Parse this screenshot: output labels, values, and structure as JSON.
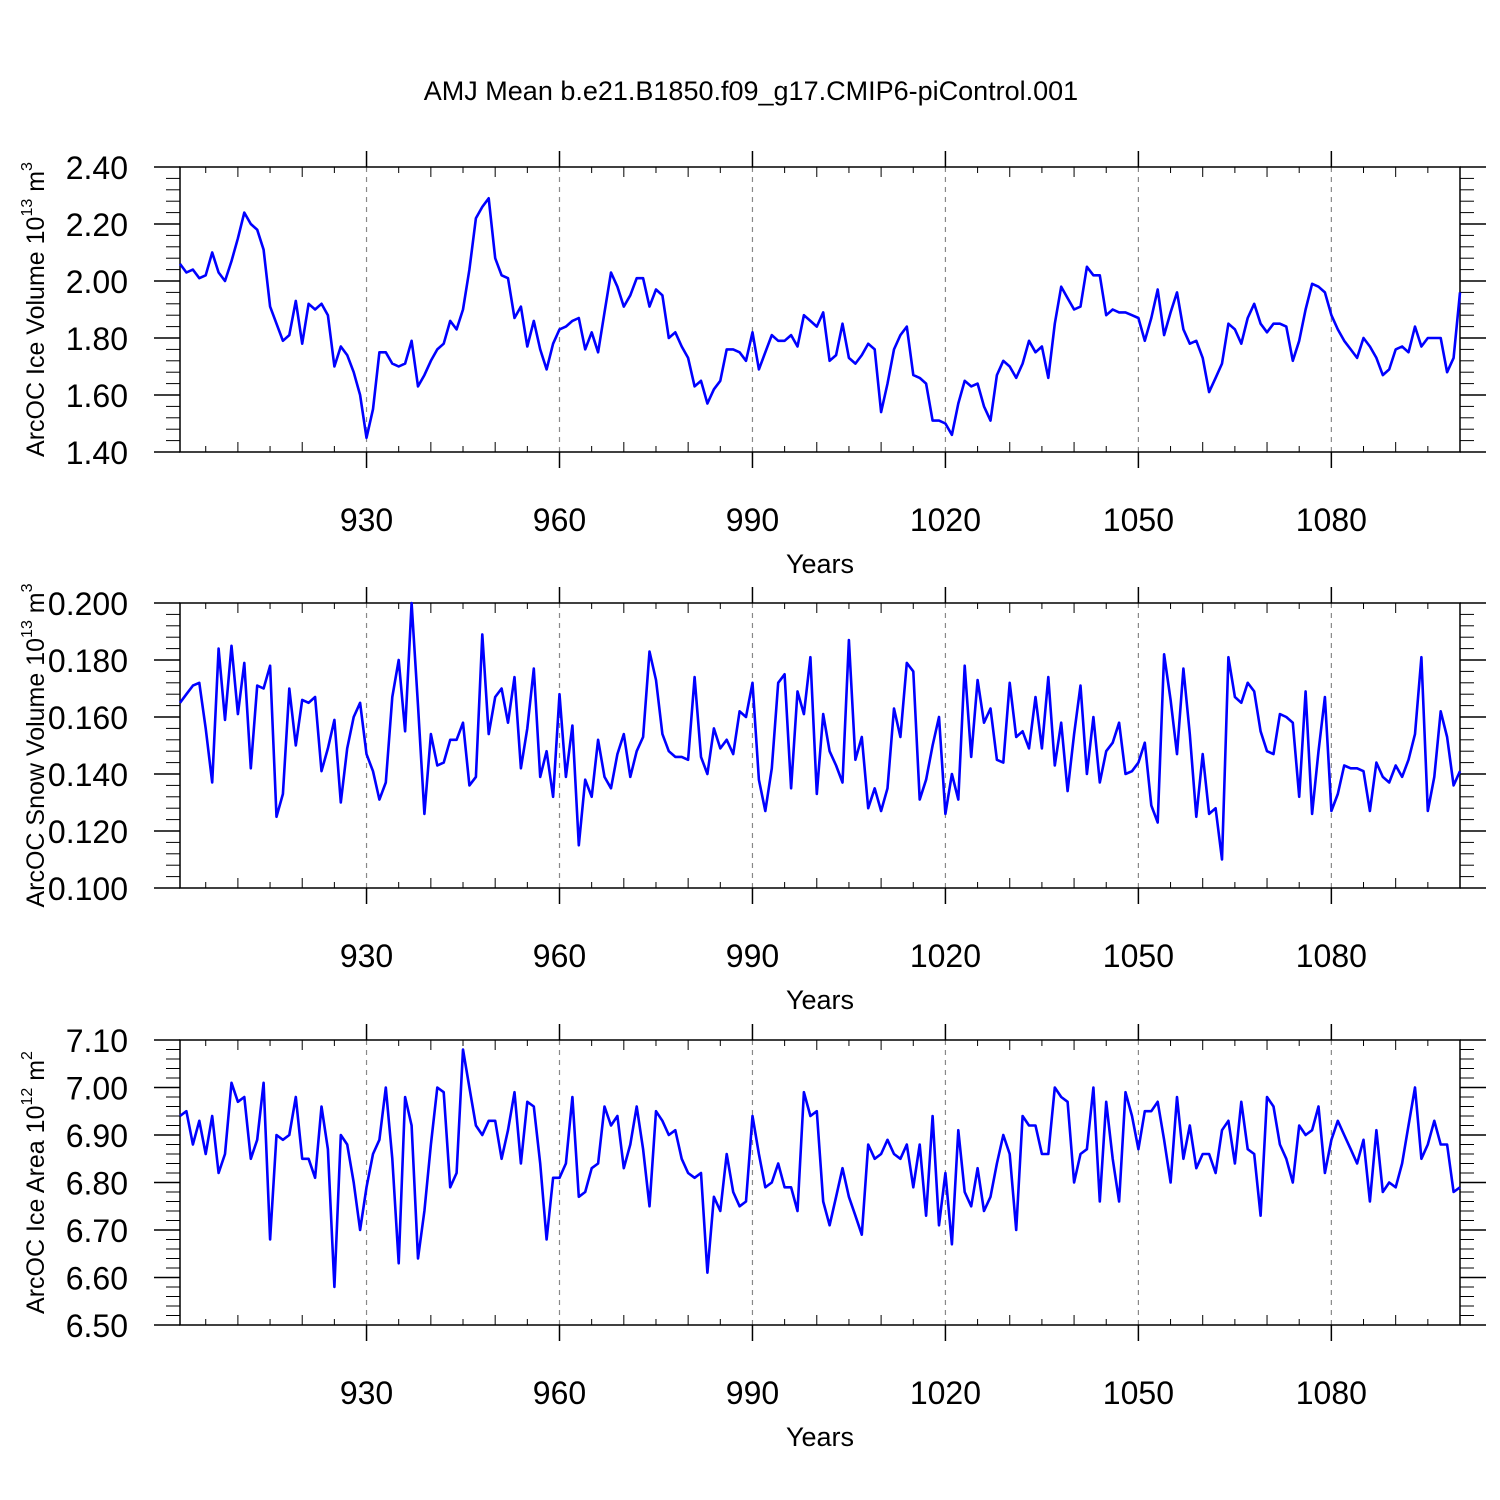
{
  "title": "AMJ Mean b.e21.B1850.f09_g17.CMIP6-piControl.001",
  "colors": {
    "line": "#0000ff",
    "axis": "#000000",
    "grid": "#888888",
    "background": "#ffffff"
  },
  "chart_data": [
    {
      "type": "line",
      "ylabel": {
        "text": "ArcOC Ice Volume 10",
        "exp": "13",
        "unit": "m",
        "unit_exp": "3"
      },
      "xlabel": "Years",
      "xlim": [
        901,
        1100
      ],
      "ylim": [
        1.4,
        2.4
      ],
      "xticks": [
        930,
        960,
        990,
        1020,
        1050,
        1080
      ],
      "xticklabels": [
        "930",
        "960",
        "990",
        "1020",
        "1050",
        "1080"
      ],
      "yticks": [
        1.4,
        1.6,
        1.8,
        2.0,
        2.2,
        2.4
      ],
      "yticklabels": [
        "1.40",
        "1.60",
        "1.80",
        "2.00",
        "2.20",
        "2.40"
      ],
      "grid": "vertical-dashed",
      "x_start": 901,
      "values": [
        2.06,
        2.03,
        2.04,
        2.01,
        2.02,
        2.1,
        2.03,
        2.0,
        2.07,
        2.15,
        2.24,
        2.2,
        2.18,
        2.11,
        1.91,
        1.85,
        1.79,
        1.81,
        1.93,
        1.78,
        1.92,
        1.9,
        1.92,
        1.88,
        1.7,
        1.77,
        1.74,
        1.68,
        1.6,
        1.45,
        1.55,
        1.75,
        1.75,
        1.71,
        1.7,
        1.71,
        1.79,
        1.63,
        1.67,
        1.72,
        1.76,
        1.78,
        1.86,
        1.83,
        1.9,
        2.04,
        2.22,
        2.26,
        2.29,
        2.08,
        2.02,
        2.01,
        1.87,
        1.91,
        1.77,
        1.86,
        1.76,
        1.69,
        1.78,
        1.83,
        1.84,
        1.86,
        1.87,
        1.76,
        1.82,
        1.75,
        1.89,
        2.03,
        1.98,
        1.91,
        1.95,
        2.01,
        2.01,
        1.91,
        1.97,
        1.95,
        1.8,
        1.82,
        1.77,
        1.73,
        1.63,
        1.65,
        1.57,
        1.62,
        1.65,
        1.76,
        1.76,
        1.75,
        1.72,
        1.82,
        1.69,
        1.75,
        1.81,
        1.79,
        1.79,
        1.81,
        1.77,
        1.88,
        1.86,
        1.84,
        1.89,
        1.72,
        1.74,
        1.85,
        1.73,
        1.71,
        1.74,
        1.78,
        1.76,
        1.54,
        1.64,
        1.76,
        1.81,
        1.84,
        1.67,
        1.66,
        1.64,
        1.51,
        1.51,
        1.5,
        1.46,
        1.57,
        1.65,
        1.63,
        1.64,
        1.56,
        1.51,
        1.67,
        1.72,
        1.7,
        1.66,
        1.71,
        1.79,
        1.75,
        1.77,
        1.66,
        1.85,
        1.98,
        1.94,
        1.9,
        1.91,
        2.05,
        2.02,
        2.02,
        1.88,
        1.9,
        1.89,
        1.89,
        1.88,
        1.87,
        1.79,
        1.87,
        1.97,
        1.81,
        1.89,
        1.96,
        1.83,
        1.78,
        1.79,
        1.73,
        1.61,
        1.66,
        1.71,
        1.85,
        1.83,
        1.78,
        1.87,
        1.92,
        1.85,
        1.82,
        1.85,
        1.85,
        1.84,
        1.72,
        1.79,
        1.9,
        1.99,
        1.98,
        1.96,
        1.88,
        1.83,
        1.79,
        1.76,
        1.73,
        1.8,
        1.77,
        1.73,
        1.67,
        1.69,
        1.76,
        1.77,
        1.75,
        1.84,
        1.77,
        1.8,
        1.8,
        1.8,
        1.68,
        1.73,
        1.96
      ]
    },
    {
      "type": "line",
      "ylabel": {
        "text": "ArcOC Snow Volume 10",
        "exp": "13",
        "unit": "m",
        "unit_exp": "3"
      },
      "xlabel": "Years",
      "xlim": [
        901,
        1100
      ],
      "ylim": [
        0.1,
        0.2
      ],
      "xticks": [
        930,
        960,
        990,
        1020,
        1050,
        1080
      ],
      "xticklabels": [
        "930",
        "960",
        "990",
        "1020",
        "1050",
        "1080"
      ],
      "yticks": [
        0.1,
        0.12,
        0.14,
        0.16,
        0.18,
        0.2
      ],
      "yticklabels": [
        "0.100",
        "0.120",
        "0.140",
        "0.160",
        "0.180",
        "0.200"
      ],
      "grid": "vertical-dashed",
      "x_start": 901,
      "values": [
        0.165,
        0.168,
        0.171,
        0.172,
        0.156,
        0.137,
        0.184,
        0.159,
        0.185,
        0.161,
        0.179,
        0.142,
        0.171,
        0.17,
        0.178,
        0.125,
        0.133,
        0.17,
        0.15,
        0.166,
        0.165,
        0.167,
        0.141,
        0.149,
        0.159,
        0.13,
        0.149,
        0.16,
        0.165,
        0.147,
        0.141,
        0.131,
        0.137,
        0.167,
        0.18,
        0.155,
        0.2,
        0.164,
        0.126,
        0.154,
        0.143,
        0.144,
        0.152,
        0.152,
        0.158,
        0.136,
        0.139,
        0.189,
        0.154,
        0.167,
        0.17,
        0.158,
        0.174,
        0.142,
        0.156,
        0.177,
        0.139,
        0.148,
        0.132,
        0.168,
        0.139,
        0.157,
        0.115,
        0.138,
        0.132,
        0.152,
        0.139,
        0.135,
        0.147,
        0.154,
        0.139,
        0.148,
        0.153,
        0.183,
        0.173,
        0.154,
        0.148,
        0.146,
        0.146,
        0.145,
        0.174,
        0.146,
        0.14,
        0.156,
        0.149,
        0.152,
        0.147,
        0.162,
        0.16,
        0.172,
        0.138,
        0.127,
        0.142,
        0.172,
        0.175,
        0.135,
        0.169,
        0.161,
        0.181,
        0.133,
        0.161,
        0.148,
        0.143,
        0.137,
        0.187,
        0.145,
        0.153,
        0.128,
        0.135,
        0.127,
        0.135,
        0.163,
        0.153,
        0.179,
        0.176,
        0.131,
        0.138,
        0.15,
        0.16,
        0.126,
        0.14,
        0.131,
        0.178,
        0.146,
        0.173,
        0.158,
        0.163,
        0.145,
        0.144,
        0.172,
        0.153,
        0.155,
        0.149,
        0.167,
        0.149,
        0.174,
        0.143,
        0.158,
        0.134,
        0.154,
        0.171,
        0.14,
        0.16,
        0.137,
        0.148,
        0.151,
        0.158,
        0.14,
        0.141,
        0.144,
        0.151,
        0.129,
        0.123,
        0.182,
        0.166,
        0.147,
        0.177,
        0.154,
        0.125,
        0.147,
        0.126,
        0.128,
        0.11,
        0.181,
        0.167,
        0.165,
        0.172,
        0.169,
        0.155,
        0.148,
        0.147,
        0.161,
        0.16,
        0.158,
        0.132,
        0.169,
        0.126,
        0.148,
        0.167,
        0.127,
        0.133,
        0.143,
        0.142,
        0.142,
        0.141,
        0.127,
        0.144,
        0.139,
        0.137,
        0.143,
        0.139,
        0.145,
        0.154,
        0.181,
        0.127,
        0.139,
        0.162,
        0.153,
        0.136,
        0.141
      ]
    },
    {
      "type": "line",
      "ylabel": {
        "text": "ArcOC Ice Area 10",
        "exp": "12",
        "unit": "m",
        "unit_exp": "2"
      },
      "xlabel": "Years",
      "xlim": [
        901,
        1100
      ],
      "ylim": [
        6.5,
        7.1
      ],
      "xticks": [
        930,
        960,
        990,
        1020,
        1050,
        1080
      ],
      "xticklabels": [
        "930",
        "960",
        "990",
        "1020",
        "1050",
        "1080"
      ],
      "yticks": [
        6.5,
        6.6,
        6.7,
        6.8,
        6.9,
        7.0,
        7.1
      ],
      "yticklabels": [
        "6.50",
        "6.60",
        "6.70",
        "6.80",
        "6.90",
        "7.00",
        "7.10"
      ],
      "grid": "vertical-dashed",
      "x_start": 901,
      "values": [
        6.94,
        6.95,
        6.88,
        6.93,
        6.86,
        6.94,
        6.82,
        6.86,
        7.01,
        6.97,
        6.98,
        6.85,
        6.89,
        7.01,
        6.68,
        6.9,
        6.89,
        6.9,
        6.98,
        6.85,
        6.85,
        6.81,
        6.96,
        6.87,
        6.58,
        6.9,
        6.88,
        6.8,
        6.7,
        6.79,
        6.86,
        6.89,
        7.0,
        6.85,
        6.63,
        6.98,
        6.92,
        6.64,
        6.74,
        6.88,
        7.0,
        6.99,
        6.79,
        6.82,
        7.08,
        7.0,
        6.92,
        6.9,
        6.93,
        6.93,
        6.85,
        6.91,
        6.99,
        6.84,
        6.97,
        6.96,
        6.84,
        6.68,
        6.81,
        6.81,
        6.84,
        6.98,
        6.77,
        6.78,
        6.83,
        6.84,
        6.96,
        6.92,
        6.94,
        6.83,
        6.88,
        6.96,
        6.87,
        6.75,
        6.95,
        6.93,
        6.9,
        6.91,
        6.85,
        6.82,
        6.81,
        6.82,
        6.61,
        6.77,
        6.74,
        6.86,
        6.78,
        6.75,
        6.76,
        6.94,
        6.86,
        6.79,
        6.8,
        6.84,
        6.79,
        6.79,
        6.74,
        6.99,
        6.94,
        6.95,
        6.76,
        6.71,
        6.77,
        6.83,
        6.77,
        6.73,
        6.69,
        6.88,
        6.85,
        6.86,
        6.89,
        6.86,
        6.85,
        6.88,
        6.79,
        6.88,
        6.73,
        6.94,
        6.71,
        6.82,
        6.67,
        6.91,
        6.78,
        6.75,
        6.83,
        6.74,
        6.77,
        6.84,
        6.9,
        6.86,
        6.7,
        6.94,
        6.92,
        6.92,
        6.86,
        6.86,
        7.0,
        6.98,
        6.97,
        6.8,
        6.86,
        6.87,
        7.0,
        6.76,
        6.97,
        6.85,
        6.76,
        6.99,
        6.94,
        6.87,
        6.95,
        6.95,
        6.97,
        6.89,
        6.8,
        6.98,
        6.85,
        6.92,
        6.83,
        6.86,
        6.86,
        6.82,
        6.91,
        6.93,
        6.84,
        6.97,
        6.87,
        6.86,
        6.73,
        6.98,
        6.96,
        6.88,
        6.85,
        6.8,
        6.92,
        6.9,
        6.91,
        6.96,
        6.82,
        6.89,
        6.93,
        6.9,
        6.87,
        6.84,
        6.89,
        6.76,
        6.91,
        6.78,
        6.8,
        6.79,
        6.84,
        6.92,
        7.0,
        6.85,
        6.88,
        6.93,
        6.88,
        6.88,
        6.78,
        6.79
      ]
    }
  ]
}
